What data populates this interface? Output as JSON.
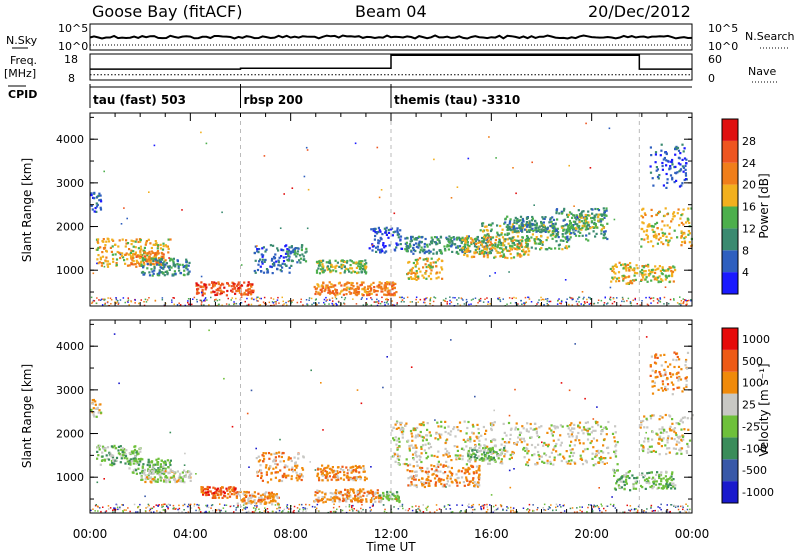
{
  "header": {
    "station": "Goose Bay (fitACF)",
    "beam": "Beam 04",
    "date": "20/Dec/2012"
  },
  "labels": {
    "nsky": "N.Sky",
    "nsearch": "N.Search",
    "freq": "Freq.",
    "mhz": "[MHz]",
    "nave": "Nave",
    "cpid": "CPID",
    "nsky_top": "10^5",
    "nsky_bot": "10^0",
    "freq_top": "18",
    "freq_bot": "8",
    "nave_top": "60",
    "nave_bot": "0"
  },
  "cpid_segments": [
    {
      "label": "tau (fast) 503",
      "start": 0
    },
    {
      "label": "rbsp 200",
      "start": 6
    },
    {
      "label": "themis (tau) -3310",
      "start": 12
    }
  ],
  "colorbars": {
    "power": {
      "label": "Power [dB]",
      "ticks": [
        "4",
        "8",
        "12",
        "16",
        "20",
        "24",
        "28"
      ],
      "colors": [
        "#1a1aff",
        "#2e5fbf",
        "#3a8a70",
        "#4caf4c",
        "#f2b01e",
        "#f07e1a",
        "#ee5520",
        "#e01010"
      ]
    },
    "velocity": {
      "label": "Velocity [m s⁻¹]",
      "ticks": [
        "1000",
        "500",
        "100",
        "25",
        "-25",
        "-100",
        "-500",
        "-1000"
      ],
      "colors": [
        "#1a1acc",
        "#3858a8",
        "#3a8c5a",
        "#6ec03a",
        "#c8c8c4",
        "#f08a0a",
        "#ee5a16",
        "#e60a0a"
      ]
    }
  },
  "chart_data": [
    {
      "type": "line",
      "title": "Goose Bay (fitACF)  Beam 04  20/Dec/2012",
      "panel": "N.Sky / N.Search",
      "ylim": [
        "10^0",
        "10^5"
      ],
      "series": [
        {
          "name": "N.Sky",
          "note": "near-constant high count"
        },
        {
          "name": "N.Search"
        }
      ]
    },
    {
      "type": "line",
      "panel": "Freq. [MHz] / Nave",
      "series": [
        {
          "name": "Freq.",
          "x": [
            0,
            12,
            21.9,
            24
          ],
          "values": [
            10,
            10,
            10,
            10
          ]
        },
        {
          "name": "Nave",
          "x": [
            0,
            6,
            12,
            21.9,
            24
          ],
          "values": [
            25,
            27,
            57,
            25,
            25
          ]
        }
      ],
      "ylim_freq": [
        8,
        18
      ],
      "ylim_nave": [
        0,
        60
      ]
    },
    {
      "type": "heatmap",
      "panel": "Power",
      "xlabel": "Time UT",
      "ylabel": "Slant Range [km]",
      "xlim": [
        0,
        24
      ],
      "ylim": [
        180,
        4600
      ],
      "x_ticks": [
        "00:00",
        "04:00",
        "08:00",
        "12:00",
        "16:00",
        "20:00",
        "00:00"
      ],
      "y_ticks": [
        1000,
        2000,
        3000,
        4000
      ],
      "value_label": "Power [dB]",
      "regions": [
        {
          "t0": 0.2,
          "t1": 3.2,
          "r0": 1100,
          "r1": 1750,
          "level": 4
        },
        {
          "t0": 1.6,
          "t1": 2.9,
          "r0": 1150,
          "r1": 1450,
          "level": 5
        },
        {
          "t0": 2.0,
          "t1": 4.0,
          "r0": 900,
          "r1": 1300,
          "level": 2
        },
        {
          "t0": 4.2,
          "t1": 6.5,
          "r0": 450,
          "r1": 750,
          "level": 6
        },
        {
          "t0": 6.5,
          "t1": 8.0,
          "r0": 950,
          "r1": 1600,
          "level": 1
        },
        {
          "t0": 7.8,
          "t1": 8.6,
          "r0": 1200,
          "r1": 1600,
          "level": 2
        },
        {
          "t0": 9.0,
          "t1": 11.0,
          "r0": 950,
          "r1": 1250,
          "level": 3
        },
        {
          "t0": 8.9,
          "t1": 12.2,
          "r0": 450,
          "r1": 750,
          "level": 5
        },
        {
          "t0": 11.1,
          "t1": 12.4,
          "r0": 1400,
          "r1": 2000,
          "level": 1
        },
        {
          "t0": 12.6,
          "t1": 14.0,
          "r0": 800,
          "r1": 1300,
          "level": 4
        },
        {
          "t0": 12.5,
          "t1": 16.0,
          "r0": 1400,
          "r1": 1800,
          "level": 2
        },
        {
          "t0": 14.8,
          "t1": 17.5,
          "r0": 1300,
          "r1": 1800,
          "level": 4
        },
        {
          "t0": 15.5,
          "t1": 19.2,
          "r0": 1500,
          "r1": 2100,
          "level": 3
        },
        {
          "t0": 16.5,
          "t1": 18.5,
          "r0": 1900,
          "r1": 2250,
          "level": 2
        },
        {
          "t0": 18.5,
          "t1": 20.6,
          "r0": 1700,
          "r1": 2450,
          "level": 2
        },
        {
          "t0": 19.0,
          "t1": 20.5,
          "r0": 1950,
          "r1": 2300,
          "level": 3
        },
        {
          "t0": 20.7,
          "t1": 21.8,
          "r0": 700,
          "r1": 1200,
          "level": 4
        },
        {
          "t0": 21.9,
          "t1": 23.3,
          "r0": 750,
          "r1": 1150,
          "level": 4
        },
        {
          "t0": 21.9,
          "t1": 24,
          "r0": 1550,
          "r1": 2450,
          "level": 4
        },
        {
          "t0": 22.3,
          "t1": 23.8,
          "r0": 2900,
          "r1": 3900,
          "level": 1
        },
        {
          "t0": 0,
          "t1": 0.4,
          "r0": 2350,
          "r1": 2800,
          "level": 1
        }
      ]
    },
    {
      "type": "heatmap",
      "panel": "Velocity",
      "xlabel": "Time UT",
      "ylabel": "Slant Range [km]",
      "xlim": [
        0,
        24
      ],
      "ylim": [
        180,
        4600
      ],
      "x_ticks": [
        "00:00",
        "04:00",
        "08:00",
        "12:00",
        "16:00",
        "20:00",
        "00:00"
      ],
      "y_ticks": [
        1000,
        2000,
        3000,
        4000
      ],
      "value_label": "Velocity [m s⁻¹]",
      "regions": [
        {
          "t0": 0.2,
          "t1": 2.0,
          "r0": 1300,
          "r1": 1750,
          "level": 3
        },
        {
          "t0": 1.5,
          "t1": 3.2,
          "r0": 1100,
          "r1": 1450,
          "level": 3
        },
        {
          "t0": 2.0,
          "t1": 4.0,
          "r0": 900,
          "r1": 1200,
          "level": 4
        },
        {
          "t0": 4.4,
          "t1": 5.8,
          "r0": 550,
          "r1": 800,
          "level": 6
        },
        {
          "t0": 5.8,
          "t1": 7.5,
          "r0": 400,
          "r1": 700,
          "level": 5
        },
        {
          "t0": 6.6,
          "t1": 8.5,
          "r0": 900,
          "r1": 1600,
          "level": 5
        },
        {
          "t0": 9.0,
          "t1": 11.0,
          "r0": 950,
          "r1": 1300,
          "level": 5
        },
        {
          "t0": 8.9,
          "t1": 11.6,
          "r0": 450,
          "r1": 750,
          "level": 5
        },
        {
          "t0": 11.5,
          "t1": 12.3,
          "r0": 450,
          "r1": 700,
          "level": 3
        },
        {
          "t0": 12.6,
          "t1": 15.5,
          "r0": 800,
          "r1": 1300,
          "level": 5
        },
        {
          "t0": 12.0,
          "t1": 21.0,
          "r0": 1300,
          "r1": 2300,
          "level": 4
        },
        {
          "t0": 15.0,
          "t1": 16.5,
          "r0": 1400,
          "r1": 1700,
          "level": 3
        },
        {
          "t0": 20.8,
          "t1": 21.8,
          "r0": 700,
          "r1": 1200,
          "level": 3
        },
        {
          "t0": 21.9,
          "t1": 23.3,
          "r0": 750,
          "r1": 1150,
          "level": 3
        },
        {
          "t0": 21.9,
          "t1": 24,
          "r0": 1550,
          "r1": 2450,
          "level": 4
        },
        {
          "t0": 22.3,
          "t1": 23.8,
          "r0": 2900,
          "r1": 3900,
          "level": 5
        },
        {
          "t0": 0,
          "t1": 0.4,
          "r0": 2350,
          "r1": 2800,
          "level": 4
        }
      ]
    }
  ]
}
